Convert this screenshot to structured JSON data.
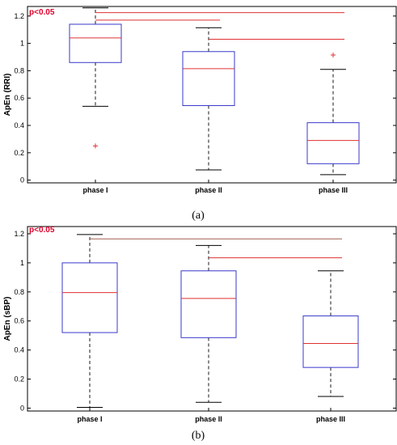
{
  "chart_data": [
    {
      "type": "box",
      "panel_label": "(a)",
      "ylabel": "ApEn (RRI)",
      "annotation": "p<0.05",
      "ylim": [
        -0.02,
        1.27
      ],
      "yticks": [
        0,
        0.2,
        0.4,
        0.6,
        0.8,
        1,
        1.2
      ],
      "ytick_labels": [
        "0",
        "0.2",
        "0.4",
        "0.6",
        "0.8",
        "1",
        "1.2"
      ],
      "categories": [
        "phase I",
        "phase II",
        "phase III"
      ],
      "boxes": [
        {
          "whisker_low": 0.54,
          "q1": 0.86,
          "median": 1.04,
          "q3": 1.14,
          "whisker_high": 1.26,
          "outliers": [
            0.25
          ]
        },
        {
          "whisker_low": 0.075,
          "q1": 0.545,
          "median": 0.815,
          "q3": 0.94,
          "whisker_high": 1.115,
          "outliers": []
        },
        {
          "whisker_low": 0.04,
          "q1": 0.12,
          "median": 0.29,
          "q3": 0.42,
          "whisker_high": 0.81,
          "outliers": [
            0.915
          ]
        }
      ],
      "significance_lines": [
        {
          "from": 0,
          "to": 2,
          "y": 1.225
        },
        {
          "from": 0,
          "to": 1,
          "y": 1.17
        },
        {
          "from": 1,
          "to": 2,
          "y": 1.03
        }
      ],
      "colors": {
        "box": "#3a3acc",
        "median": "#e03030",
        "whisker": "#000000",
        "outlier": "#e03030",
        "sig_line": "#e03030",
        "annotation": "#e0002a"
      }
    },
    {
      "type": "box",
      "panel_label": "(b)",
      "ylabel": "ApEn (sBP)",
      "annotation": "p<0.05",
      "ylim": [
        -0.02,
        1.25
      ],
      "yticks": [
        0,
        0.2,
        0.4,
        0.6,
        0.8,
        1,
        1.2
      ],
      "ytick_labels": [
        "0",
        "0.2",
        "0.4",
        "0.6",
        "0.8",
        "1",
        "1.2"
      ],
      "categories": [
        "phase I",
        "phase II",
        "phase III"
      ],
      "boxes": [
        {
          "whisker_low": 0.005,
          "q1": 0.52,
          "median": 0.795,
          "q3": 1.0,
          "whisker_high": 1.195,
          "outliers": []
        },
        {
          "whisker_low": 0.04,
          "q1": 0.485,
          "median": 0.755,
          "q3": 0.945,
          "whisker_high": 1.12,
          "outliers": []
        },
        {
          "whisker_low": 0.08,
          "q1": 0.28,
          "median": 0.445,
          "q3": 0.635,
          "whisker_high": 0.945,
          "outliers": []
        }
      ],
      "significance_lines": [
        {
          "from": 0,
          "to": 2,
          "y": 1.165,
          "color": "#a06050"
        },
        {
          "from": 1,
          "to": 2,
          "y": 1.035,
          "color": "#e03030"
        }
      ],
      "colors": {
        "box": "#3a3acc",
        "median": "#e03030",
        "whisker": "#000000",
        "outlier": "#e03030",
        "sig_line": "#e03030",
        "annotation": "#e0002a"
      }
    }
  ]
}
